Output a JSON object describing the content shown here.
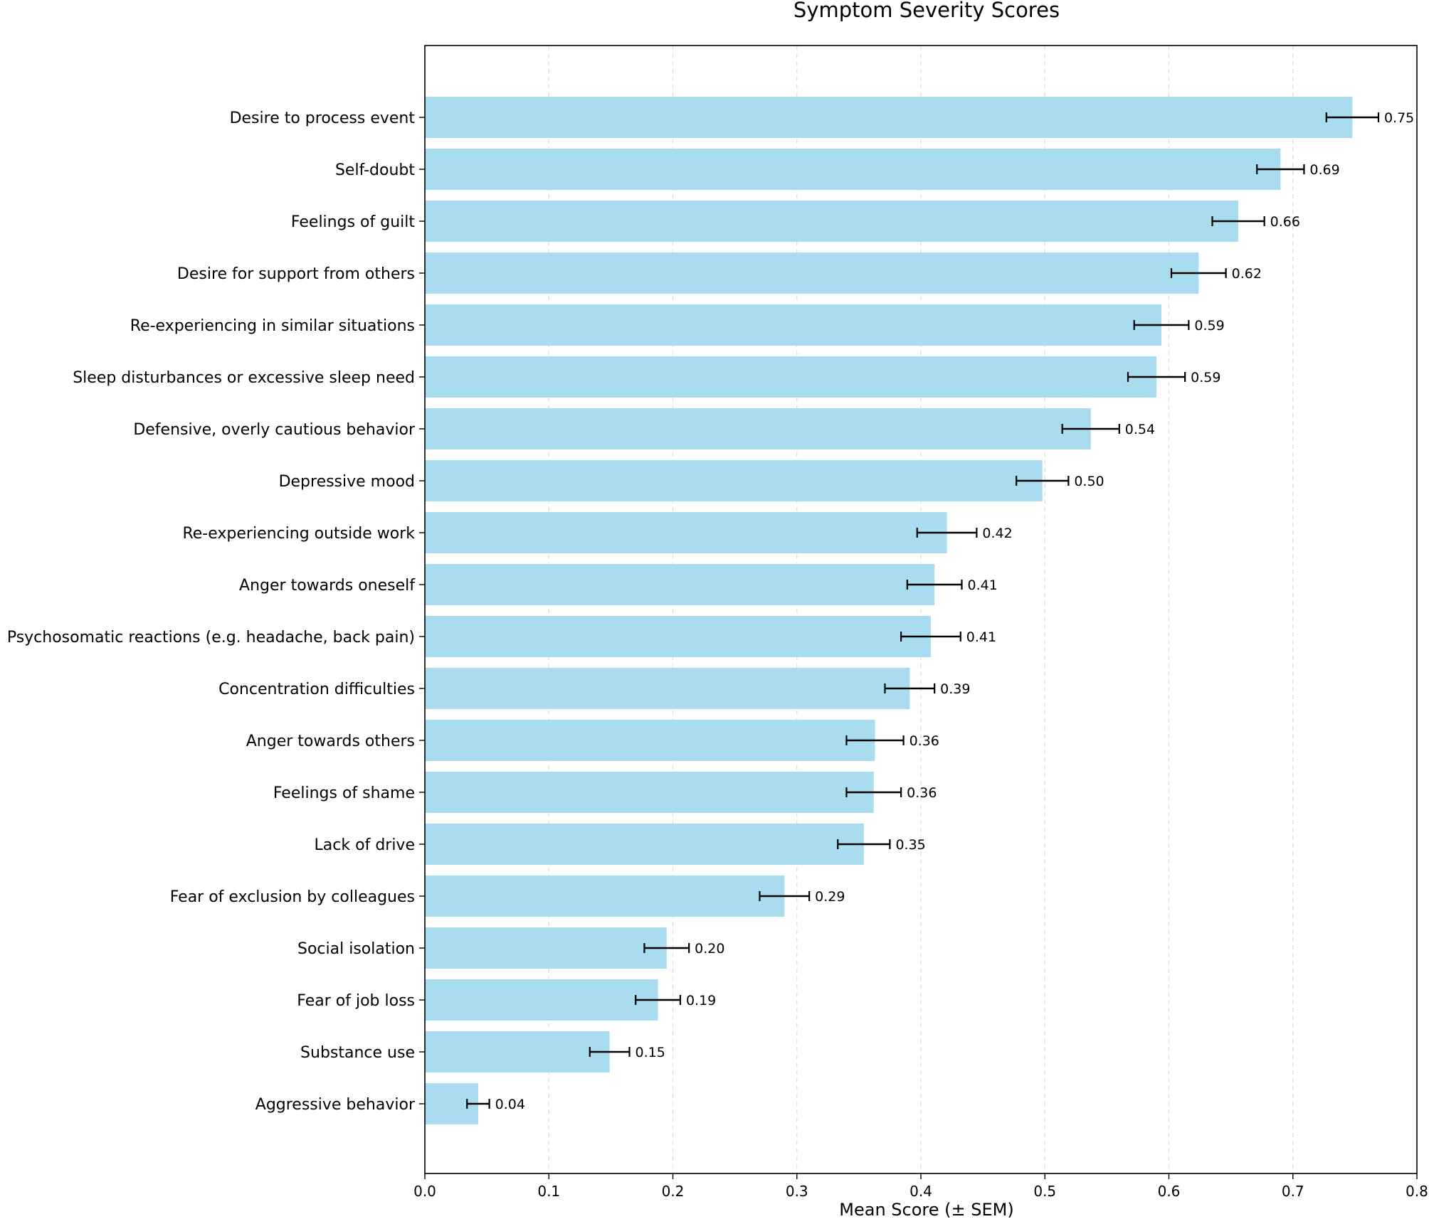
{
  "chart_data": {
    "type": "bar",
    "orientation": "horizontal",
    "title": "Symptom Severity Scores",
    "xlabel": "Mean Score (± SEM)",
    "ylabel": "",
    "xlim": [
      0.0,
      0.8
    ],
    "xticks": [
      "0.0",
      "0.1",
      "0.2",
      "0.3",
      "0.4",
      "0.5",
      "0.6",
      "0.7",
      "0.8"
    ],
    "grid": "vertical dashed",
    "bar_color": "#a9dcee",
    "error_bar_color": "#000000",
    "categories": [
      "Desire to process event",
      "Self-doubt",
      "Feelings of guilt",
      "Desire for support from others",
      "Re-experiencing in similar situations",
      "Sleep disturbances or excessive sleep need",
      "Defensive, overly cautious behavior",
      "Depressive mood",
      "Re-experiencing outside work",
      "Anger towards oneself",
      "Psychosomatic reactions (e.g. headache, back pain)",
      "Concentration difficulties",
      "Anger towards others",
      "Feelings of shame",
      "Lack of drive",
      "Fear of exclusion by colleagues",
      "Social isolation",
      "Fear of job loss",
      "Substance use",
      "Aggressive behavior"
    ],
    "values": [
      0.748,
      0.69,
      0.656,
      0.624,
      0.594,
      0.59,
      0.537,
      0.498,
      0.421,
      0.411,
      0.408,
      0.391,
      0.363,
      0.362,
      0.354,
      0.29,
      0.195,
      0.188,
      0.149,
      0.043
    ],
    "errors": [
      0.021,
      0.019,
      0.021,
      0.022,
      0.022,
      0.023,
      0.023,
      0.021,
      0.024,
      0.022,
      0.024,
      0.02,
      0.023,
      0.022,
      0.021,
      0.02,
      0.018,
      0.018,
      0.016,
      0.009
    ],
    "value_labels": [
      "0.75",
      "0.69",
      "0.66",
      "0.62",
      "0.59",
      "0.59",
      "0.54",
      "0.50",
      "0.42",
      "0.41",
      "0.41",
      "0.39",
      "0.36",
      "0.36",
      "0.35",
      "0.29",
      "0.20",
      "0.19",
      "0.15",
      "0.04"
    ]
  }
}
